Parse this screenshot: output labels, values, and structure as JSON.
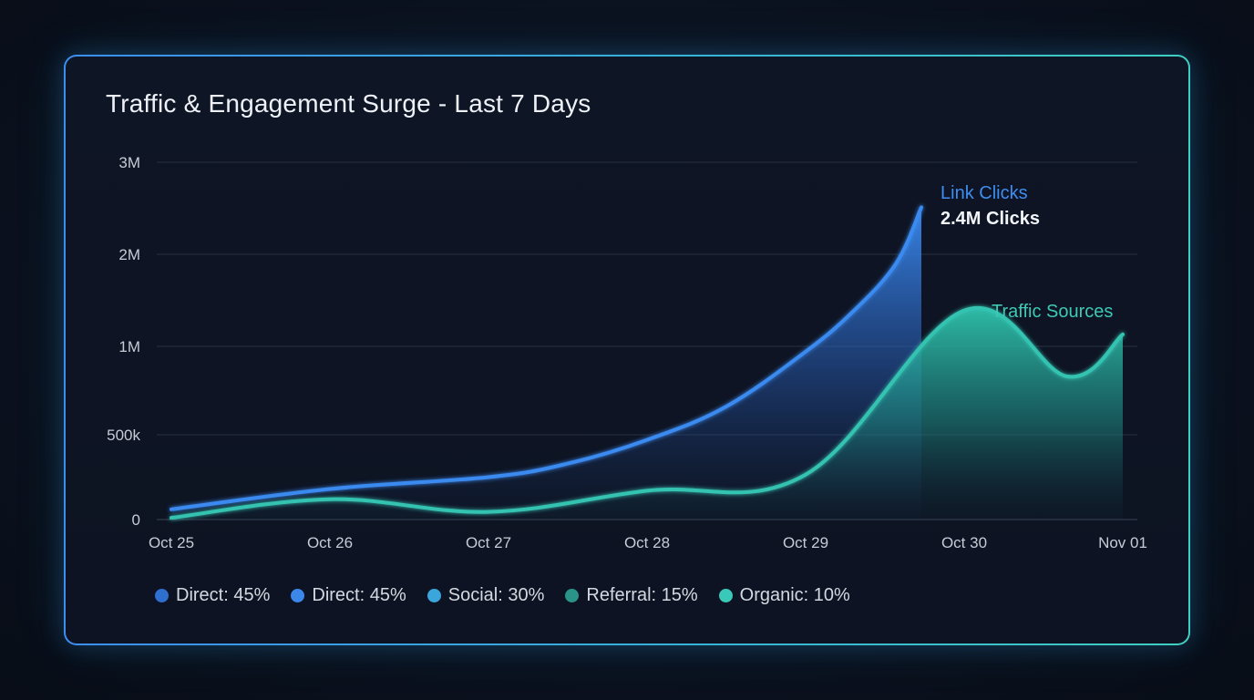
{
  "chart_data": {
    "type": "area",
    "title": "Traffic & Engagement Surge - Last 7 Days",
    "xlabel": "",
    "ylabel": "",
    "x_tick_labels": [
      "Oct 25",
      "Oct 26",
      "Oct 27",
      "Oct 28",
      "Oct 29",
      "Oct 30",
      "Nov 01"
    ],
    "y_tick_labels": [
      "0",
      "500k",
      "1M",
      "2M",
      "3M"
    ],
    "y_tick_values": [
      0,
      500000,
      1000000,
      2000000,
      3000000
    ],
    "grid": true,
    "series": [
      {
        "name": "Link Clicks",
        "color": "#3a8af0",
        "points": [
          {
            "x": 0.0,
            "y": 60000
          },
          {
            "x": 1.0,
            "y": 180000
          },
          {
            "x": 2.0,
            "y": 250000
          },
          {
            "x": 2.5,
            "y": 330000
          },
          {
            "x": 3.0,
            "y": 470000
          },
          {
            "x": 3.5,
            "y": 660000
          },
          {
            "x": 4.0,
            "y": 970000
          },
          {
            "x": 4.3,
            "y": 1380000
          },
          {
            "x": 4.57,
            "y": 1900000
          },
          {
            "x": 4.73,
            "y": 2510000
          }
        ]
      },
      {
        "name": "Traffic Sources",
        "color": "#34c3b1",
        "points": [
          {
            "x": 0.0,
            "y": 10000
          },
          {
            "x": 1.0,
            "y": 120000
          },
          {
            "x": 2.0,
            "y": 45000
          },
          {
            "x": 3.0,
            "y": 170000
          },
          {
            "x": 4.0,
            "y": 265000
          },
          {
            "x": 5.0,
            "y": 1390000
          },
          {
            "x": 5.65,
            "y": 830000
          },
          {
            "x": 6.0,
            "y": 1130000
          }
        ]
      }
    ],
    "annotations": [
      {
        "series": "Link Clicks",
        "label": "Link Clicks",
        "value_label": "2.4M Clicks"
      },
      {
        "series": "Traffic Sources",
        "label": "Traffic Sources"
      }
    ],
    "legend": {
      "position": "bottom-left",
      "items": [
        {
          "label": "Direct: 45%",
          "color": "#2f6fd0"
        },
        {
          "label": "Direct: 45%",
          "color": "#3b87ea"
        },
        {
          "label": "Social: 30%",
          "color": "#3aa6dc"
        },
        {
          "label": "Referral: 15%",
          "color": "#2a9488"
        },
        {
          "label": "Organic: 10%",
          "color": "#3ac8b8"
        }
      ]
    }
  }
}
